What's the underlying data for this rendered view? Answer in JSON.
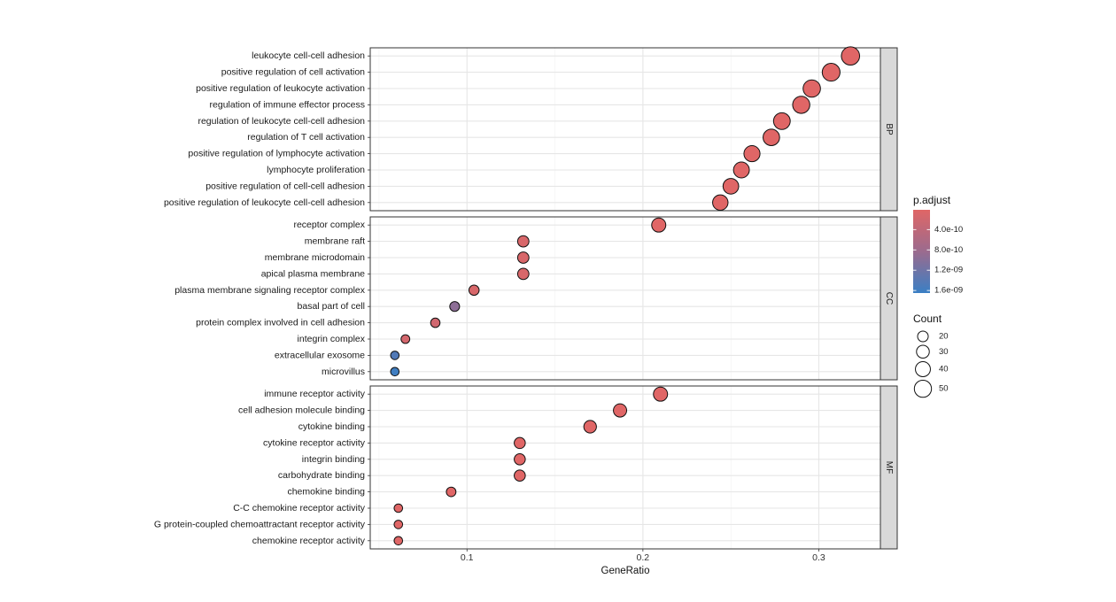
{
  "chart_data": {
    "type": "scatter",
    "subtype": "faceted dot plot (GO enrichment)",
    "xlabel": "GeneRatio",
    "xlim": [
      0.045,
      0.335
    ],
    "x_ticks": [
      0.1,
      0.2,
      0.3
    ],
    "x_tick_labels": [
      "0.1",
      "0.2",
      "0.3"
    ],
    "grid": true,
    "facets": [
      {
        "name": "BP",
        "terms": [
          {
            "label": "leukocyte cell-cell adhesion",
            "gene_ratio": 0.318,
            "count": 55,
            "p_adjust": 1e-11
          },
          {
            "label": "positive regulation of cell activation",
            "gene_ratio": 0.307,
            "count": 53,
            "p_adjust": 1e-11
          },
          {
            "label": "positive regulation of leukocyte activation",
            "gene_ratio": 0.296,
            "count": 51,
            "p_adjust": 1e-11
          },
          {
            "label": "regulation of immune effector process",
            "gene_ratio": 0.29,
            "count": 50,
            "p_adjust": 1e-11
          },
          {
            "label": "regulation of leukocyte cell-cell adhesion",
            "gene_ratio": 0.279,
            "count": 48,
            "p_adjust": 1e-11
          },
          {
            "label": "regulation of T cell activation",
            "gene_ratio": 0.273,
            "count": 47,
            "p_adjust": 1e-11
          },
          {
            "label": "positive regulation of lymphocyte activation",
            "gene_ratio": 0.262,
            "count": 45,
            "p_adjust": 1e-11
          },
          {
            "label": "lymphocyte proliferation",
            "gene_ratio": 0.256,
            "count": 44,
            "p_adjust": 1e-11
          },
          {
            "label": "positive regulation of cell-cell adhesion",
            "gene_ratio": 0.25,
            "count": 43,
            "p_adjust": 1e-11
          },
          {
            "label": "positive regulation of leukocyte cell-cell adhesion",
            "gene_ratio": 0.244,
            "count": 42,
            "p_adjust": 1e-11
          }
        ]
      },
      {
        "name": "CC",
        "terms": [
          {
            "label": "receptor complex",
            "gene_ratio": 0.209,
            "count": 36,
            "p_adjust": 1e-11
          },
          {
            "label": "membrane raft",
            "gene_ratio": 0.132,
            "count": 23,
            "p_adjust": 1e-10
          },
          {
            "label": "membrane microdomain",
            "gene_ratio": 0.132,
            "count": 23,
            "p_adjust": 1e-10
          },
          {
            "label": "apical plasma membrane",
            "gene_ratio": 0.132,
            "count": 23,
            "p_adjust": 1e-10
          },
          {
            "label": "plasma membrane signaling receptor complex",
            "gene_ratio": 0.104,
            "count": 18,
            "p_adjust": 1e-10
          },
          {
            "label": "basal part of cell",
            "gene_ratio": 0.093,
            "count": 16,
            "p_adjust": 9.5e-10
          },
          {
            "label": "protein complex involved in cell adhesion",
            "gene_ratio": 0.082,
            "count": 14,
            "p_adjust": 2e-10
          },
          {
            "label": "integrin complex",
            "gene_ratio": 0.065,
            "count": 11,
            "p_adjust": 1.5e-10
          },
          {
            "label": "extracellular exosome",
            "gene_ratio": 0.059,
            "count": 10,
            "p_adjust": 1.45e-09
          },
          {
            "label": "microvillus",
            "gene_ratio": 0.059,
            "count": 10,
            "p_adjust": 1.6e-09
          }
        ]
      },
      {
        "name": "MF",
        "terms": [
          {
            "label": "immune receptor activity",
            "gene_ratio": 0.21,
            "count": 36,
            "p_adjust": 1e-11
          },
          {
            "label": "cell adhesion molecule binding",
            "gene_ratio": 0.187,
            "count": 32,
            "p_adjust": 1e-11
          },
          {
            "label": "cytokine binding",
            "gene_ratio": 0.17,
            "count": 29,
            "p_adjust": 1e-11
          },
          {
            "label": "cytokine receptor activity",
            "gene_ratio": 0.13,
            "count": 22,
            "p_adjust": 1e-11
          },
          {
            "label": "integrin binding",
            "gene_ratio": 0.13,
            "count": 22,
            "p_adjust": 1e-11
          },
          {
            "label": "carbohydrate binding",
            "gene_ratio": 0.13,
            "count": 22,
            "p_adjust": 1e-11
          },
          {
            "label": "chemokine binding",
            "gene_ratio": 0.091,
            "count": 15,
            "p_adjust": 1e-11
          },
          {
            "label": "C-C chemokine receptor activity",
            "gene_ratio": 0.061,
            "count": 10,
            "p_adjust": 1e-11
          },
          {
            "label": "G protein-coupled chemoattractant receptor activity",
            "gene_ratio": 0.061,
            "count": 10,
            "p_adjust": 1e-11
          },
          {
            "label": "chemokine receptor activity",
            "gene_ratio": 0.061,
            "count": 10,
            "p_adjust": 1e-11
          }
        ]
      }
    ],
    "color_legend": {
      "title": "p.adjust",
      "breaks": [
        4e-10,
        8e-10,
        1.2e-09,
        1.6e-09
      ],
      "labels": [
        "4.0e-10",
        "8.0e-10",
        "1.2e-09",
        "1.6e-09"
      ],
      "range": [
        1e-11,
        1.65e-09
      ],
      "low_color": "#e06666",
      "high_color": "#3a7fc4"
    },
    "size_legend": {
      "title": "Count",
      "values": [
        20,
        30,
        40,
        50
      ],
      "labels": [
        "20",
        "30",
        "40",
        "50"
      ]
    }
  }
}
